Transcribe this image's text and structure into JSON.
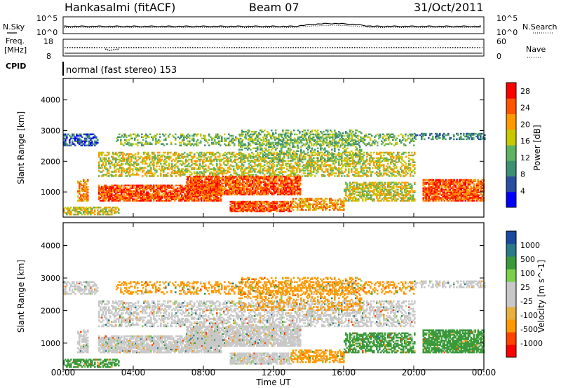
{
  "header": {
    "station": "Hankasalmi (fitACF)",
    "beam": "Beam 07",
    "date": "31/Oct/2011"
  },
  "noise_panel": {
    "left_label": "N.Sky",
    "right_label": "N.Search",
    "left_ticks": [
      "10^5",
      "10^0"
    ],
    "right_ticks": [
      "10^5",
      "10^0"
    ]
  },
  "freq_panel": {
    "left_label_1": "Freq.",
    "left_label_2": "[MHz]",
    "right_label": "Nave",
    "left_ticks": [
      "18",
      "8"
    ],
    "right_ticks": [
      "60",
      "0"
    ]
  },
  "cpid_panel": {
    "label": "CPID",
    "mode_text": "normal (fast stereo) 153"
  },
  "colors": {
    "power_scale": [
      "#0000ff",
      "#2a4fa0",
      "#3f8f73",
      "#5fb25f",
      "#c8c800",
      "#ff9900",
      "#ff5500",
      "#ff0000"
    ],
    "velocity_scale": [
      "#ff0000",
      "#ff4400",
      "#ff9900",
      "#e8b040",
      "#c8c8c8",
      "#c8c8c8",
      "#7bcf4a",
      "#3a9a3a",
      "#2a7a8a",
      "#1a4aa0"
    ],
    "velocity_ground": "#c8c8c8"
  },
  "chart_data": [
    {
      "type": "heatmap",
      "panel": "power",
      "xlabel": "Time UT",
      "ylabel": "Slant Range [km]",
      "x_ticks": [
        "00:00",
        "04:00",
        "08:00",
        "12:00",
        "16:00",
        "20:00",
        "00:00"
      ],
      "y_ticks": [
        1000,
        2000,
        3000,
        4000
      ],
      "xlim_hours": [
        0,
        24
      ],
      "ylim_km": [
        180,
        4700
      ],
      "colorbar": {
        "label": "Power [dB]",
        "ticks": [
          4,
          8,
          12,
          16,
          20,
          24,
          28
        ],
        "range": [
          0,
          30
        ]
      }
    },
    {
      "type": "heatmap",
      "panel": "velocity",
      "xlabel": "Time UT",
      "ylabel": "Slant Range [km]",
      "x_ticks": [
        "00:00",
        "04:00",
        "08:00",
        "12:00",
        "16:00",
        "20:00",
        "00:00"
      ],
      "y_ticks": [
        1000,
        2000,
        3000,
        4000
      ],
      "xlim_hours": [
        0,
        24
      ],
      "ylim_km": [
        180,
        4700
      ],
      "colorbar": {
        "label": "Velocity [m s^-1]",
        "ticks": [
          "1000",
          "500",
          "100",
          "25",
          "-25",
          "-100",
          "-500",
          "-1000"
        ]
      }
    }
  ]
}
